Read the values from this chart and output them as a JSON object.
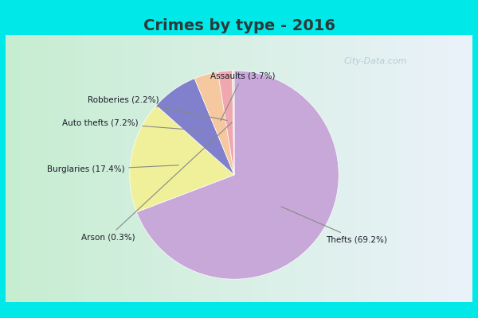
{
  "title": "Crimes by type - 2016",
  "title_fontsize": 14,
  "title_fontweight": "bold",
  "title_color": "#2a3a3a",
  "labels": [
    "Thefts",
    "Burglaries",
    "Auto thefts",
    "Assaults",
    "Robberies",
    "Arson"
  ],
  "percentages": [
    69.2,
    17.4,
    7.2,
    3.7,
    2.2,
    0.3
  ],
  "colors": [
    "#c8a8d8",
    "#f0f09a",
    "#8080cc",
    "#f5c8a0",
    "#f0a8b0",
    "#e0e8b8"
  ],
  "label_texts": [
    "Thefts (69.2%)",
    "Burglaries (17.4%)",
    "Auto thefts (7.2%)",
    "Assaults (3.7%)",
    "Robberies (2.2%)",
    "Arson (0.3%)"
  ],
  "cyan_border": "#00e8e8",
  "inner_bg_left": "#c8e8d0",
  "inner_bg_right": "#e0ecf8",
  "fig_width": 6.0,
  "fig_height": 4.0,
  "startangle": 90,
  "watermark": "City-Data.com"
}
